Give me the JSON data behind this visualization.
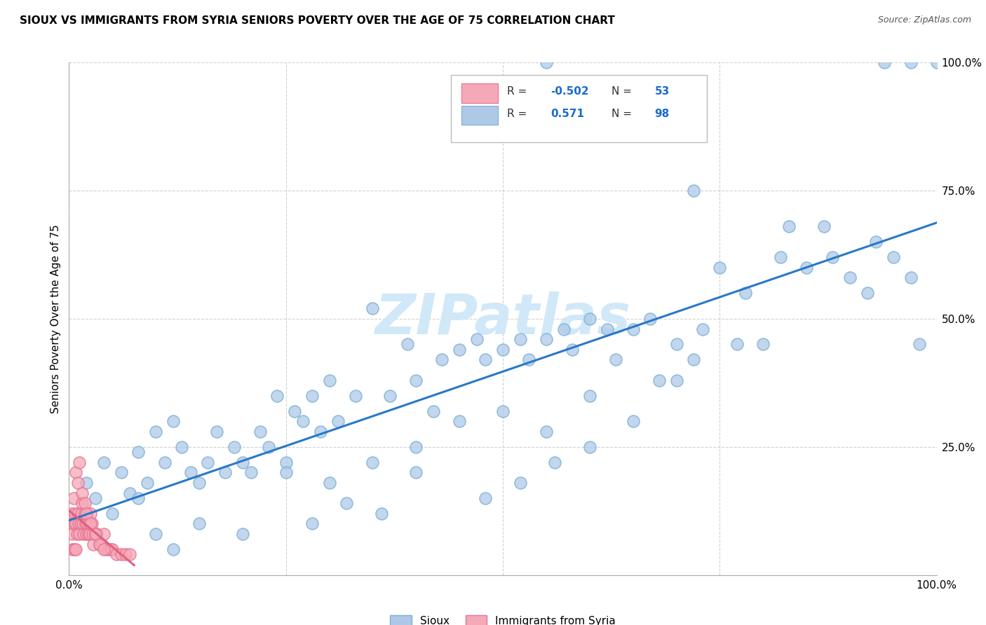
{
  "title": "SIOUX VS IMMIGRANTS FROM SYRIA SENIORS POVERTY OVER THE AGE OF 75 CORRELATION CHART",
  "source": "Source: ZipAtlas.com",
  "ylabel": "Seniors Poverty Over the Age of 75",
  "xlim": [
    0,
    1.0
  ],
  "ylim": [
    0,
    1.0
  ],
  "legend_r_sioux": "0.571",
  "legend_n_sioux": "98",
  "legend_r_syria": "-0.502",
  "legend_n_syria": "53",
  "sioux_color": "#aec9e8",
  "sioux_edge_color": "#7aafd4",
  "syria_color": "#f5a8b8",
  "syria_edge_color": "#e87090",
  "sioux_line_color": "#2878c8",
  "syria_line_color": "#e06080",
  "watermark_color": "#d0e8f8",
  "background_color": "#ffffff",
  "grid_color": "#cccccc",
  "sioux_x": [
    0.02,
    0.03,
    0.04,
    0.05,
    0.06,
    0.07,
    0.08,
    0.09,
    0.1,
    0.11,
    0.12,
    0.13,
    0.14,
    0.15,
    0.16,
    0.17,
    0.18,
    0.19,
    0.2,
    0.21,
    0.22,
    0.23,
    0.24,
    0.25,
    0.26,
    0.27,
    0.28,
    0.29,
    0.3,
    0.31,
    0.33,
    0.35,
    0.37,
    0.39,
    0.4,
    0.42,
    0.43,
    0.45,
    0.47,
    0.48,
    0.5,
    0.52,
    0.53,
    0.55,
    0.57,
    0.58,
    0.6,
    0.62,
    0.63,
    0.65,
    0.67,
    0.68,
    0.7,
    0.72,
    0.73,
    0.75,
    0.77,
    0.78,
    0.8,
    0.82,
    0.83,
    0.85,
    0.87,
    0.88,
    0.9,
    0.92,
    0.93,
    0.95,
    0.97,
    0.98,
    0.55,
    0.72,
    0.94,
    0.97,
    1.0,
    0.08,
    0.1,
    0.12,
    0.15,
    0.2,
    0.25,
    0.3,
    0.35,
    0.4,
    0.45,
    0.5,
    0.55,
    0.6,
    0.65,
    0.7,
    0.28,
    0.32,
    0.36,
    0.4,
    0.48,
    0.52,
    0.56,
    0.6
  ],
  "sioux_y": [
    0.18,
    0.15,
    0.22,
    0.12,
    0.2,
    0.16,
    0.24,
    0.18,
    0.28,
    0.22,
    0.3,
    0.25,
    0.2,
    0.18,
    0.22,
    0.28,
    0.2,
    0.25,
    0.22,
    0.2,
    0.28,
    0.25,
    0.35,
    0.22,
    0.32,
    0.3,
    0.35,
    0.28,
    0.38,
    0.3,
    0.35,
    0.52,
    0.35,
    0.45,
    0.38,
    0.32,
    0.42,
    0.44,
    0.46,
    0.42,
    0.44,
    0.46,
    0.42,
    0.46,
    0.48,
    0.44,
    0.5,
    0.48,
    0.42,
    0.48,
    0.5,
    0.38,
    0.45,
    0.42,
    0.48,
    0.6,
    0.45,
    0.55,
    0.45,
    0.62,
    0.68,
    0.6,
    0.68,
    0.62,
    0.58,
    0.55,
    0.65,
    0.62,
    0.58,
    0.45,
    1.0,
    0.75,
    1.0,
    1.0,
    1.0,
    0.15,
    0.08,
    0.05,
    0.1,
    0.08,
    0.2,
    0.18,
    0.22,
    0.25,
    0.3,
    0.32,
    0.28,
    0.35,
    0.3,
    0.38,
    0.1,
    0.14,
    0.12,
    0.2,
    0.15,
    0.18,
    0.22,
    0.25
  ],
  "syria_x": [
    0.002,
    0.003,
    0.004,
    0.005,
    0.006,
    0.007,
    0.008,
    0.009,
    0.01,
    0.011,
    0.012,
    0.013,
    0.014,
    0.015,
    0.016,
    0.017,
    0.018,
    0.019,
    0.02,
    0.021,
    0.022,
    0.023,
    0.024,
    0.025,
    0.026,
    0.027,
    0.028,
    0.03,
    0.032,
    0.035,
    0.038,
    0.04,
    0.042,
    0.045,
    0.048,
    0.05,
    0.055,
    0.06,
    0.065,
    0.07,
    0.008,
    0.01,
    0.012,
    0.015,
    0.018,
    0.02,
    0.025,
    0.03,
    0.035,
    0.04,
    0.004,
    0.006,
    0.008
  ],
  "syria_y": [
    0.1,
    0.12,
    0.08,
    0.15,
    0.1,
    0.12,
    0.1,
    0.08,
    0.12,
    0.1,
    0.08,
    0.1,
    0.12,
    0.14,
    0.1,
    0.08,
    0.12,
    0.1,
    0.08,
    0.1,
    0.08,
    0.1,
    0.08,
    0.12,
    0.1,
    0.08,
    0.06,
    0.08,
    0.08,
    0.06,
    0.06,
    0.08,
    0.05,
    0.05,
    0.05,
    0.05,
    0.04,
    0.04,
    0.04,
    0.04,
    0.2,
    0.18,
    0.22,
    0.16,
    0.14,
    0.12,
    0.1,
    0.08,
    0.06,
    0.05,
    0.05,
    0.05,
    0.05
  ]
}
